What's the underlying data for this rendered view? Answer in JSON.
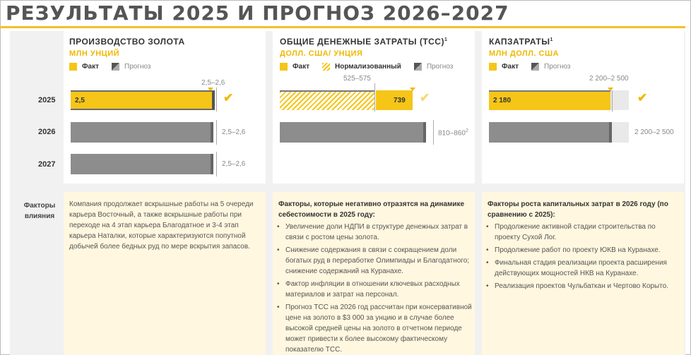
{
  "page_title": "РЕЗУЛЬТАТЫ 2025 И ПРОГНОЗ 2026–2027",
  "colors": {
    "accent": "#f5c518",
    "forecast": "#8d8d8d",
    "factors_bg": "#fff7df"
  },
  "years": [
    "2025",
    "2026",
    "2027"
  ],
  "factors_label": "Факторы влияния",
  "panels": {
    "gold": {
      "title": "ПРОИЗВОДСТВО ЗОЛОТА",
      "unit": "МЛН УНЦИЙ",
      "legend": {
        "fact": "Факт",
        "forecast": "Прогноз"
      },
      "guidance_2025": "2,5–2,6",
      "fact_2025": "2,5",
      "guidance_2026": "2,5–2,6",
      "guidance_2027": "2,5–2,6",
      "factors_text": "Компания продолжает вскрышные работы на 5 очереди карьера Восточный, а также вскрышные работы при переходе на 4 этап карьера Благодатное и 3-4 этап карьера Наталки, которые характеризуются попутной добычей более бедных руд по мере вскрытия запасов."
    },
    "tcc": {
      "title": "ОБЩИЕ ДЕНЕЖНЫЕ ЗАТРАТЫ (TCC)",
      "title_sup": "1",
      "unit": "ДОЛЛ. США/ УНЦИЯ",
      "legend": {
        "fact": "Факт",
        "normalized": "Нормализованный",
        "forecast": "Прогноз"
      },
      "guidance_2025": "525–575",
      "fact_2025": "739",
      "guidance_2026": "810–860",
      "guidance_2026_sup": "2",
      "factors_heading": "Факторы, которые негативно отразятся на динамике себестоимости в 2025 году:",
      "factors": [
        "Увеличение доли НДПИ в структуре денежных затрат в связи с ростом цены золота.",
        "Снижение содержания в связи с сокращением доли богатых руд в переработке Олимпиады и Благодатного; снижение содержаний на Куранахе.",
        "Фактор инфляции в отношении ключевых расходных материалов и затрат на персонал.",
        "Прогноз ТСС на 2026 год рассчитан при консервативной цене на золото в $3 000 за унцию и в случае более высокой средней цены на золото в отчетном периоде может привести к более высокому фактическому показателю ТСС."
      ]
    },
    "capex": {
      "title": "КАПЗАТРАТЫ",
      "title_sup": "1",
      "unit": "МЛН ДОЛЛ. США",
      "legend": {
        "fact": "Факт",
        "forecast": "Прогноз"
      },
      "guidance_2025": "2 200–2 500",
      "fact_2025": "2 180",
      "guidance_2026": "2 200–2 500",
      "factors_heading": "Факторы роста капитальных затрат в 2026 году (по сравнению с 2025):",
      "factors": [
        "Продолжение активной стадии строительства по проекту Сухой Лог.",
        "Продолжение работ по проекту ЮКВ на Куранахе.",
        "Финальная стадия реализации проекта расширения действующих мощностей НКВ на Куранахе.",
        "Реализация проектов Чульбаткан и Чертово Корыто."
      ]
    }
  }
}
